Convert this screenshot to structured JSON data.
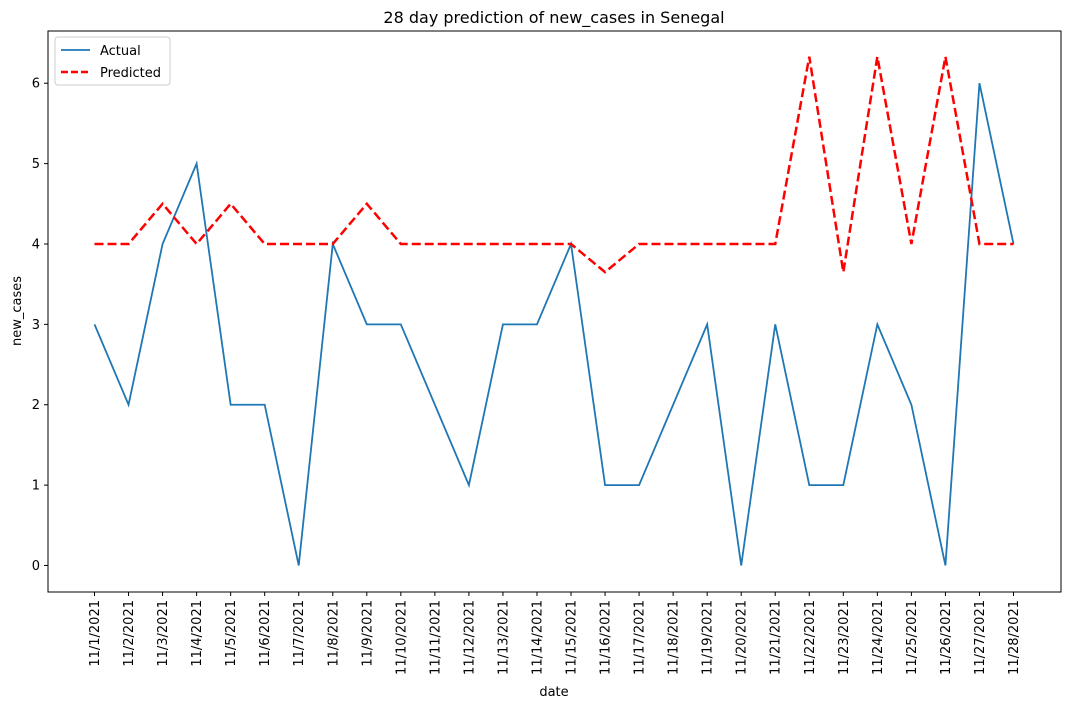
{
  "chart_data": {
    "type": "line",
    "title": "28 day prediction of new_cases in Senegal",
    "xlabel": "date",
    "ylabel": "new_cases",
    "categories": [
      "11/1/2021",
      "11/2/2021",
      "11/3/2021",
      "11/4/2021",
      "11/5/2021",
      "11/6/2021",
      "11/7/2021",
      "11/8/2021",
      "11/9/2021",
      "11/10/2021",
      "11/11/2021",
      "11/12/2021",
      "11/13/2021",
      "11/14/2021",
      "11/15/2021",
      "11/16/2021",
      "11/17/2021",
      "11/18/2021",
      "11/19/2021",
      "11/20/2021",
      "11/21/2021",
      "11/22/2021",
      "11/23/2021",
      "11/24/2021",
      "11/25/2021",
      "11/26/2021",
      "11/27/2021",
      "11/28/2021"
    ],
    "yticks": [
      0,
      1,
      2,
      3,
      4,
      5,
      6
    ],
    "ylim": [
      -0.33,
      6.65
    ],
    "legend_position": "upper-left",
    "grid": false,
    "series": [
      {
        "name": "Actual",
        "color": "#1f77b4",
        "style": "solid",
        "values": [
          3,
          2,
          4,
          5,
          2,
          2,
          0,
          4,
          3,
          3,
          2,
          1,
          3,
          3,
          4,
          1,
          1,
          2,
          3,
          0,
          3,
          1,
          1,
          3,
          2,
          0,
          6,
          4
        ]
      },
      {
        "name": "Predicted",
        "color": "#ff0000",
        "style": "dashed",
        "values": [
          4,
          4,
          4.5,
          4,
          4.5,
          4,
          4,
          4,
          4.5,
          4,
          4,
          4,
          4,
          4,
          4,
          3.65,
          4,
          4,
          4,
          4,
          4,
          6.33,
          3.65,
          6.33,
          4,
          6.33,
          4,
          4
        ]
      }
    ]
  }
}
